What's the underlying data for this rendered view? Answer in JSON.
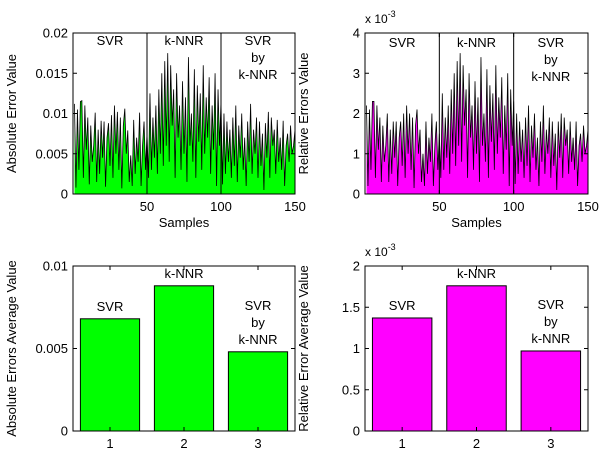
{
  "chart_data": [
    {
      "id": "abs-error-line",
      "type": "area",
      "xlabel": "Samples",
      "ylabel": "Absolute Error Value",
      "xlim": [
        0,
        150
      ],
      "ylim": [
        0,
        0.02
      ],
      "xticks": [
        "50",
        "100",
        "150"
      ],
      "yticks": [
        "0",
        "0.005",
        "0.01",
        "0.015",
        "0.02"
      ],
      "exponent_label": "",
      "fill_color": "#00ff00",
      "dividers": [
        50,
        100
      ],
      "region_labels": [
        {
          "lines": [
            "SVR"
          ],
          "x": 25,
          "y": 0.0185
        },
        {
          "lines": [
            "k-NNR"
          ],
          "x": 75,
          "y": 0.0185
        },
        {
          "lines": [
            "SVR",
            "by",
            "k-NNR"
          ],
          "x": 125,
          "y": 0.0185
        }
      ],
      "x": [
        1,
        2,
        3,
        4,
        5,
        6,
        7,
        8,
        9,
        10,
        11,
        12,
        13,
        14,
        15,
        16,
        17,
        18,
        19,
        20,
        21,
        22,
        23,
        24,
        25,
        26,
        27,
        28,
        29,
        30,
        31,
        32,
        33,
        34,
        35,
        36,
        37,
        38,
        39,
        40,
        41,
        42,
        43,
        44,
        45,
        46,
        47,
        48,
        49,
        50,
        51,
        52,
        53,
        54,
        55,
        56,
        57,
        58,
        59,
        60,
        61,
        62,
        63,
        64,
        65,
        66,
        67,
        68,
        69,
        70,
        71,
        72,
        73,
        74,
        75,
        76,
        77,
        78,
        79,
        80,
        81,
        82,
        83,
        84,
        85,
        86,
        87,
        88,
        89,
        90,
        91,
        92,
        93,
        94,
        95,
        96,
        97,
        98,
        99,
        100,
        101,
        102,
        103,
        104,
        105,
        106,
        107,
        108,
        109,
        110,
        111,
        112,
        113,
        114,
        115,
        116,
        117,
        118,
        119,
        120,
        121,
        122,
        123,
        124,
        125,
        126,
        127,
        128,
        129,
        130,
        131,
        132,
        133,
        134,
        135,
        136,
        137,
        138,
        139,
        140,
        141,
        142,
        143,
        144,
        145,
        146,
        147,
        148,
        149,
        150
      ],
      "values": [
        0.0112,
        0.0008,
        0.0105,
        0.003,
        0.0115,
        0.0116,
        0.002,
        0.011,
        0.0055,
        0.0095,
        0.0012,
        0.0085,
        0.004,
        0.006,
        0.0101,
        0.0015,
        0.008,
        0.0025,
        0.0091,
        0.0045,
        0.009,
        0.0009,
        0.007,
        0.0088,
        0.0035,
        0.0098,
        0.002,
        0.011,
        0.005,
        0.0102,
        0.003,
        0.0095,
        0.0007,
        0.0085,
        0.0106,
        0.005,
        0.0079,
        0.0015,
        0.0048,
        0.001,
        0.0092,
        0.0025,
        0.007,
        0.004,
        0.0101,
        0.001,
        0.006,
        0.009,
        0.003,
        0.0075,
        0.002,
        0.0125,
        0.003,
        0.0095,
        0.0045,
        0.011,
        0.0025,
        0.013,
        0.005,
        0.015,
        0.0035,
        0.0165,
        0.006,
        0.0175,
        0.004,
        0.016,
        0.0085,
        0.013,
        0.002,
        0.015,
        0.007,
        0.011,
        0.003,
        0.014,
        0.005,
        0.012,
        0.0015,
        0.017,
        0.006,
        0.01,
        0.004,
        0.0155,
        0.002,
        0.0135,
        0.0065,
        0.0125,
        0.003,
        0.016,
        0.005,
        0.012,
        0.007,
        0.0145,
        0.0025,
        0.011,
        0.0055,
        0.015,
        0.001,
        0.013,
        0.006,
        0.0115,
        0.0012,
        0.01,
        0.0025,
        0.009,
        0.004,
        0.008,
        0.002,
        0.0095,
        0.0035,
        0.011,
        0.0015,
        0.0085,
        0.0045,
        0.01,
        0.003,
        0.007,
        0.001,
        0.009,
        0.004,
        0.0112,
        0.0025,
        0.008,
        0.005,
        0.0095,
        0.002,
        0.009,
        0.0035,
        0.0075,
        0.0005,
        0.0088,
        0.0045,
        0.0102,
        0.002,
        0.0095,
        0.006,
        0.008,
        0.0025,
        0.0092,
        0.004,
        0.007,
        0.003,
        0.0091,
        0.001,
        0.006,
        0.0075,
        0.004,
        0.0085,
        0.005,
        0.006,
        0.008
      ]
    },
    {
      "id": "rel-error-line",
      "type": "area",
      "xlabel": "Samples",
      "ylabel": "Relative Errors Value",
      "xlim": [
        0,
        150
      ],
      "ylim": [
        0,
        4
      ],
      "xticks": [
        "50",
        "100",
        "150"
      ],
      "yticks": [
        "0",
        "1",
        "2",
        "3",
        "4"
      ],
      "exponent_label": "x 10",
      "exponent_power": "-3",
      "fill_color": "#ff00ff",
      "dividers": [
        50,
        100
      ],
      "region_labels": [
        {
          "lines": [
            "SVR"
          ],
          "x": 25,
          "y": 3.65
        },
        {
          "lines": [
            "k-NNR"
          ],
          "x": 75,
          "y": 3.65
        },
        {
          "lines": [
            "SVR",
            "by",
            "k-NNR"
          ],
          "x": 125,
          "y": 3.65
        }
      ],
      "x": [
        1,
        2,
        3,
        4,
        5,
        6,
        7,
        8,
        9,
        10,
        11,
        12,
        13,
        14,
        15,
        16,
        17,
        18,
        19,
        20,
        21,
        22,
        23,
        24,
        25,
        26,
        27,
        28,
        29,
        30,
        31,
        32,
        33,
        34,
        35,
        36,
        37,
        38,
        39,
        40,
        41,
        42,
        43,
        44,
        45,
        46,
        47,
        48,
        49,
        50,
        51,
        52,
        53,
        54,
        55,
        56,
        57,
        58,
        59,
        60,
        61,
        62,
        63,
        64,
        65,
        66,
        67,
        68,
        69,
        70,
        71,
        72,
        73,
        74,
        75,
        76,
        77,
        78,
        79,
        80,
        81,
        82,
        83,
        84,
        85,
        86,
        87,
        88,
        89,
        90,
        91,
        92,
        93,
        94,
        95,
        96,
        97,
        98,
        99,
        100,
        101,
        102,
        103,
        104,
        105,
        106,
        107,
        108,
        109,
        110,
        111,
        112,
        113,
        114,
        115,
        116,
        117,
        118,
        119,
        120,
        121,
        122,
        123,
        124,
        125,
        126,
        127,
        128,
        129,
        130,
        131,
        132,
        133,
        134,
        135,
        136,
        137,
        138,
        139,
        140,
        141,
        142,
        143,
        144,
        145,
        146,
        147,
        148,
        149,
        150
      ],
      "values": [
        2.2,
        0.2,
        2.1,
        0.6,
        2.3,
        2.3,
        0.4,
        2.2,
        1.1,
        1.9,
        0.3,
        1.7,
        0.8,
        1.2,
        2.0,
        0.3,
        1.6,
        0.5,
        1.8,
        0.9,
        1.8,
        0.2,
        1.4,
        1.8,
        0.7,
        2.0,
        0.4,
        2.2,
        1.0,
        2.0,
        0.6,
        1.9,
        0.15,
        1.7,
        2.1,
        1.0,
        1.6,
        0.3,
        1.0,
        0.2,
        1.8,
        0.5,
        1.4,
        0.8,
        2.0,
        0.2,
        1.2,
        1.8,
        0.6,
        1.5,
        0.4,
        2.5,
        0.6,
        1.9,
        0.9,
        2.2,
        0.5,
        2.6,
        1.0,
        3.0,
        0.7,
        3.3,
        1.2,
        3.5,
        0.8,
        3.2,
        1.7,
        2.6,
        0.4,
        3.0,
        1.4,
        2.2,
        0.6,
        2.8,
        1.0,
        2.4,
        0.3,
        3.4,
        1.2,
        2.0,
        0.8,
        3.1,
        0.4,
        2.7,
        1.3,
        2.5,
        0.6,
        3.2,
        1.0,
        2.4,
        1.4,
        2.9,
        0.5,
        2.2,
        1.1,
        3.0,
        0.2,
        2.6,
        1.2,
        2.3,
        0.25,
        2.0,
        0.5,
        1.8,
        0.8,
        1.6,
        0.4,
        1.9,
        0.7,
        2.2,
        0.3,
        1.7,
        0.9,
        2.0,
        0.6,
        1.4,
        0.2,
        1.8,
        0.8,
        2.2,
        0.5,
        1.6,
        1.0,
        1.9,
        0.4,
        1.8,
        0.7,
        1.5,
        0.1,
        1.8,
        0.9,
        2.0,
        0.4,
        1.9,
        1.2,
        1.6,
        0.5,
        1.8,
        0.8,
        1.4,
        0.6,
        1.8,
        0.2,
        1.2,
        1.5,
        0.8,
        1.7,
        1.0,
        1.2,
        1.6
      ]
    },
    {
      "id": "abs-error-bar",
      "type": "bar",
      "xlabel": "",
      "ylabel": "Absolute Errors Average Value",
      "categories": [
        "1",
        "2",
        "3"
      ],
      "values": [
        0.0068,
        0.0088,
        0.0048
      ],
      "ylim": [
        0,
        0.01
      ],
      "yticks": [
        "0",
        "0.005",
        "0.01"
      ],
      "exponent_label": "",
      "fill_color": "#00ff00",
      "bar_labels": [
        [
          "SVR"
        ],
        [
          "k-NNR"
        ],
        [
          "SVR",
          "by",
          "k-NNR"
        ]
      ]
    },
    {
      "id": "rel-error-bar",
      "type": "bar",
      "xlabel": "",
      "ylabel": "Relative Error Average Value",
      "categories": [
        "1",
        "2",
        "3"
      ],
      "values": [
        1.37,
        1.76,
        0.97
      ],
      "ylim": [
        0,
        2
      ],
      "yticks": [
        "0",
        "0.5",
        "1",
        "1.5",
        "2"
      ],
      "exponent_label": "x 10",
      "exponent_power": "-3",
      "fill_color": "#ff00ff",
      "bar_labels": [
        [
          "SVR"
        ],
        [
          "k-NNR"
        ],
        [
          "SVR",
          "by",
          "k-NNR"
        ]
      ]
    }
  ]
}
